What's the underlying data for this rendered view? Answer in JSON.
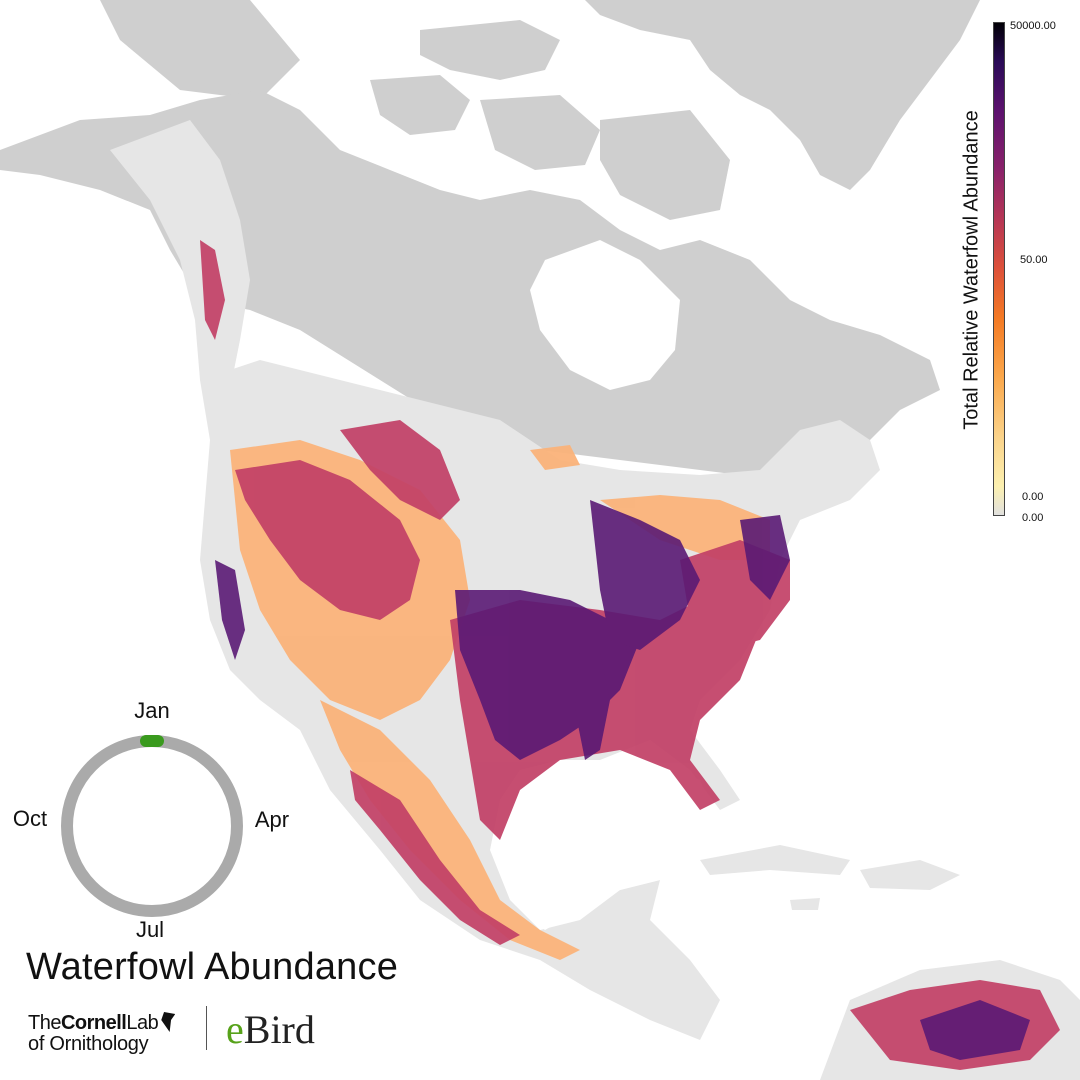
{
  "title": "Waterfowl Abundance",
  "legend": {
    "title": "Total Relative Waterfowl Abundance",
    "ticks": {
      "max": "50000.00",
      "mid": "50.00",
      "low": "0.00",
      "zero": "0.00"
    },
    "colors": [
      "#000004",
      "#2a0b57",
      "#5c126e",
      "#8a226a",
      "#b63655",
      "#dd513a",
      "#f47a24",
      "#fba84c",
      "#fbd38a",
      "#fcf0b0",
      "#e0e0e0"
    ]
  },
  "season_wheel": {
    "months": {
      "top": "Jan",
      "right": "Apr",
      "bottom": "Jul",
      "left": "Oct"
    },
    "current_week_fraction": 0.0,
    "ring_color": "#aaaaaa",
    "marker_color": "#3a9a1e"
  },
  "logos": {
    "cornell_line1_a": "The",
    "cornell_line1_b": "Cornell",
    "cornell_line1_c": "Lab",
    "cornell_line2": "of Ornithology",
    "ebird_e": "e",
    "ebird_rest": "Bird"
  },
  "map_colors": {
    "land_out_of_range": "#cfcfcf",
    "land_no_data": "#e6e6e6",
    "water": "#ffffff",
    "high": "#4b1670",
    "mid_high": "#8c2a78",
    "mid": "#c24066",
    "low": "#ec6a4a",
    "very_low": "#fbb37a"
  }
}
